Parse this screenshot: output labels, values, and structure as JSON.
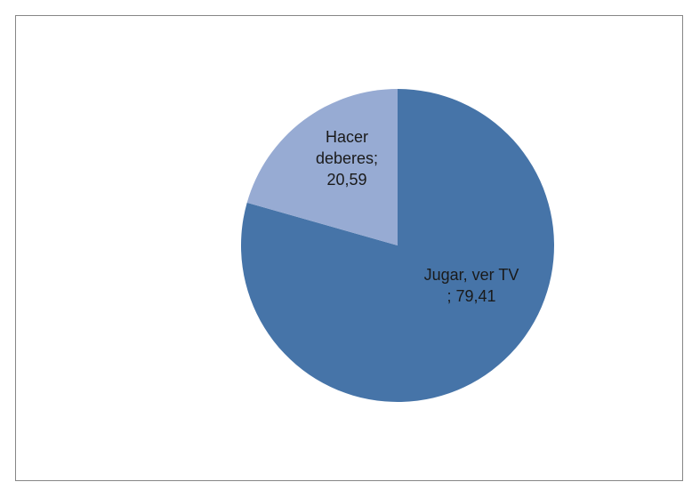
{
  "chart_data": {
    "type": "pie",
    "title": "",
    "categories": [
      "Jugar, ver TV",
      "Hacer deberes"
    ],
    "values": [
      79.41,
      20.59
    ],
    "value_labels": [
      "79,41",
      "20,59"
    ],
    "slice_colors": [
      "#4674A8",
      "#97ABD3"
    ],
    "slice_labels": [
      {
        "lines": [
          "Jugar, ver TV",
          "; 79,41"
        ]
      },
      {
        "lines": [
          "Hacer",
          "deberes;",
          "20,59"
        ]
      }
    ],
    "start_angle_deg": 0,
    "direction": "clockwise",
    "legend": "none"
  }
}
